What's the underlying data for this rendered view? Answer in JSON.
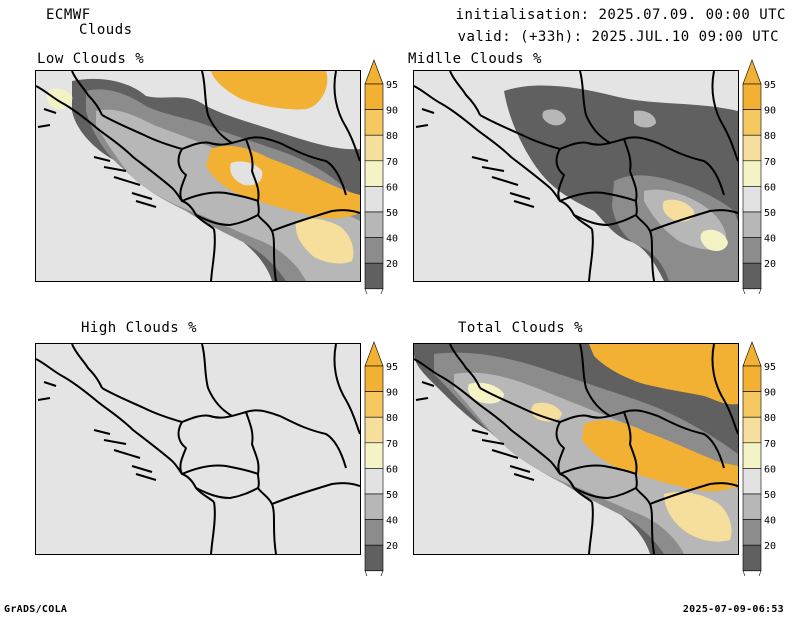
{
  "header": {
    "model": "ECMWF",
    "product": "Clouds",
    "initialisation": "initialisation: 2025.07.09. 00:00 UTC",
    "valid": "valid: (+33h): 2025.JUL.10 09:00 UTC"
  },
  "panels": [
    {
      "title": "Low Clouds %"
    },
    {
      "title": "Midlle Clouds %"
    },
    {
      "title": "High Clouds %"
    },
    {
      "title": "Total Clouds %"
    }
  ],
  "colorbar": {
    "levels": [
      "95",
      "90",
      "80",
      "70",
      "60",
      "50",
      "40",
      "20"
    ],
    "colors": [
      "#f2b132",
      "#f5c862",
      "#f6df9c",
      "#f4f3c6",
      "#e2e2e2",
      "#b7b7b7",
      "#8c8c8c",
      "#606060"
    ]
  },
  "footer": {
    "left": "GrADS/COLA",
    "right": "2025-07-09-06:53"
  }
}
